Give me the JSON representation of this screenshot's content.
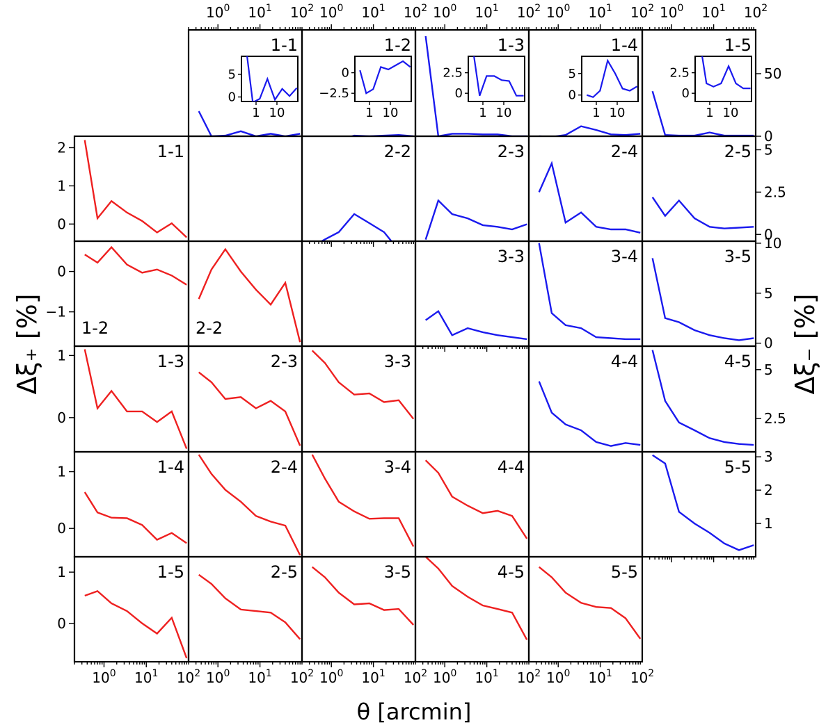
{
  "figure": {
    "x_label": "θ [arcmin]",
    "y_left_label": "Δξ₊ [%]",
    "y_right_label": "Δξ₋ [%]"
  },
  "chart_data": {
    "type": "line",
    "x_scale": "log",
    "xlim": [
      0.2,
      100
    ],
    "x_tick_labels": [
      "10^0",
      "10^1",
      "10^2"
    ],
    "theta": [
      0.35,
      0.7,
      1.5,
      3.5,
      8,
      18,
      40,
      90
    ],
    "colors": {
      "xi_plus": "#ee2020",
      "xi_minus": "#1a1aee"
    },
    "xi_plus": [
      {
        "label": "1-1",
        "row": 1,
        "col": 0,
        "ylim": [
          -0.45,
          2.3
        ],
        "yticks": [
          0,
          1,
          2
        ],
        "label_pos": "top-right",
        "values": [
          2.2,
          0.15,
          0.6,
          0.3,
          0.08,
          -0.22,
          0.02,
          -0.35
        ]
      },
      {
        "label": "1-2",
        "row": 2,
        "col": 0,
        "ylim": [
          -1.85,
          0.75
        ],
        "yticks": [
          -1,
          0
        ],
        "label_pos": "bottom-left",
        "values": [
          0.42,
          0.22,
          0.6,
          0.17,
          -0.03,
          0.05,
          -0.1,
          -0.33
        ]
      },
      {
        "label": "2-2",
        "row": 2,
        "col": 1,
        "ylim": [
          -1.85,
          0.75
        ],
        "yticks": [],
        "label_pos": "bottom-left",
        "values": [
          -0.68,
          0.05,
          0.55,
          0.0,
          -0.45,
          -0.82,
          -0.28,
          -1.75
        ]
      },
      {
        "label": "1-3",
        "row": 3,
        "col": 0,
        "ylim": [
          -0.55,
          1.15
        ],
        "yticks": [
          0,
          1
        ],
        "label_pos": "top-right",
        "values": [
          1.1,
          0.15,
          0.43,
          0.1,
          0.1,
          -0.07,
          0.1,
          -0.5
        ]
      },
      {
        "label": "2-3",
        "row": 3,
        "col": 1,
        "ylim": [
          -0.55,
          1.15
        ],
        "yticks": [],
        "label_pos": "top-right",
        "values": [
          0.73,
          0.57,
          0.3,
          0.33,
          0.15,
          0.27,
          0.1,
          -0.45
        ]
      },
      {
        "label": "3-3",
        "row": 3,
        "col": 2,
        "ylim": [
          -0.55,
          1.15
        ],
        "yticks": [],
        "label_pos": "top-right",
        "values": [
          1.08,
          0.88,
          0.57,
          0.37,
          0.39,
          0.25,
          0.28,
          -0.02
        ]
      },
      {
        "label": "1-4",
        "row": 4,
        "col": 0,
        "ylim": [
          -0.5,
          1.35
        ],
        "yticks": [
          0,
          1
        ],
        "label_pos": "top-right",
        "values": [
          0.64,
          0.28,
          0.19,
          0.18,
          0.06,
          -0.2,
          -0.08,
          -0.26
        ]
      },
      {
        "label": "2-4",
        "row": 4,
        "col": 1,
        "ylim": [
          -0.5,
          1.35
        ],
        "yticks": [],
        "label_pos": "top-right",
        "values": [
          1.3,
          0.96,
          0.68,
          0.47,
          0.22,
          0.12,
          0.05,
          -0.47
        ]
      },
      {
        "label": "3-4",
        "row": 4,
        "col": 2,
        "ylim": [
          -0.5,
          1.35
        ],
        "yticks": [],
        "label_pos": "top-right",
        "values": [
          1.3,
          0.88,
          0.47,
          0.3,
          0.17,
          0.18,
          0.18,
          -0.32
        ]
      },
      {
        "label": "4-4",
        "row": 4,
        "col": 3,
        "ylim": [
          -0.5,
          1.35
        ],
        "yticks": [],
        "label_pos": "top-right",
        "values": [
          1.2,
          0.98,
          0.56,
          0.4,
          0.27,
          0.31,
          0.22,
          -0.18
        ]
      },
      {
        "label": "1-5",
        "row": 5,
        "col": 0,
        "ylim": [
          -0.75,
          1.3
        ],
        "yticks": [
          0,
          1
        ],
        "label_pos": "top-right",
        "values": [
          0.54,
          0.63,
          0.39,
          0.24,
          0.0,
          -0.2,
          0.11,
          -0.68
        ]
      },
      {
        "label": "2-5",
        "row": 5,
        "col": 1,
        "ylim": [
          -0.75,
          1.3
        ],
        "yticks": [],
        "label_pos": "top-right",
        "values": [
          0.95,
          0.77,
          0.49,
          0.27,
          0.24,
          0.21,
          0.02,
          -0.31
        ]
      },
      {
        "label": "3-5",
        "row": 5,
        "col": 2,
        "ylim": [
          -0.75,
          1.3
        ],
        "yticks": [],
        "label_pos": "top-right",
        "values": [
          1.1,
          0.9,
          0.6,
          0.37,
          0.39,
          0.26,
          0.28,
          -0.03
        ]
      },
      {
        "label": "4-5",
        "row": 5,
        "col": 3,
        "ylim": [
          -0.75,
          1.3
        ],
        "yticks": [],
        "label_pos": "top-right",
        "values": [
          1.3,
          1.07,
          0.73,
          0.52,
          0.35,
          0.28,
          0.21,
          -0.32
        ]
      },
      {
        "label": "5-5",
        "row": 5,
        "col": 4,
        "ylim": [
          -0.75,
          1.3
        ],
        "yticks": [],
        "label_pos": "top-right",
        "values": [
          1.1,
          0.9,
          0.6,
          0.4,
          0.32,
          0.3,
          0.1,
          -0.3
        ]
      }
    ],
    "xi_minus": [
      {
        "label": "1-1",
        "row": 0,
        "col": 1,
        "ylim": [
          0,
          85
        ],
        "yticks": [],
        "label_pos": "top-right",
        "values": [
          20,
          0,
          0.5,
          4,
          0,
          2,
          0,
          2
        ],
        "inset": {
          "yticks": [
            0,
            5
          ],
          "ylim": [
            -1,
            9
          ],
          "xticks": [
            "1",
            "10"
          ],
          "values": [
            10,
            -1.2,
            -0.4,
            4,
            -0.6,
            1.8,
            0.2,
            2
          ]
        }
      },
      {
        "label": "1-2",
        "row": 0,
        "col": 2,
        "ylim": [
          0,
          85
        ],
        "yticks": [],
        "label_pos": "top-right",
        "values": [
          -3,
          -3,
          -3,
          0.5,
          0,
          0.5,
          1,
          0
        ],
        "inset": {
          "yticks": [
            -2.5,
            0.0
          ],
          "ylim": [
            -3.5,
            2
          ],
          "xticks": [
            "1",
            "10"
          ],
          "values": [
            0.3,
            -2.5,
            -2.0,
            0.7,
            0.4,
            0.9,
            1.4,
            0.7
          ]
        }
      },
      {
        "label": "1-3",
        "row": 0,
        "col": 3,
        "ylim": [
          0,
          85
        ],
        "yticks": [],
        "label_pos": "top-right",
        "values": [
          80,
          0,
          2,
          2,
          1.5,
          1.5,
          0,
          0
        ],
        "inset": {
          "yticks": [
            0.0,
            2.5
          ],
          "ylim": [
            -1,
            4.5
          ],
          "xticks": [
            "1",
            "10"
          ],
          "values": [
            5,
            -0.3,
            2.1,
            2.1,
            1.6,
            1.5,
            -0.3,
            -0.3
          ]
        }
      },
      {
        "label": "1-4",
        "row": 0,
        "col": 4,
        "ylim": [
          0,
          85
        ],
        "yticks": [],
        "label_pos": "top-right",
        "values": [
          0,
          -0.5,
          1,
          8,
          5,
          1.5,
          1,
          2
        ],
        "inset": {
          "yticks": [
            0,
            5
          ],
          "ylim": [
            -1.5,
            9
          ],
          "xticks": [
            "1",
            "10"
          ],
          "values": [
            0,
            -0.5,
            1,
            8,
            5,
            1.5,
            1,
            2
          ]
        }
      },
      {
        "label": "1-5",
        "row": 0,
        "col": 5,
        "ylim": [
          0,
          85
        ],
        "yticks": [
          0,
          50
        ],
        "label_pos": "top-right",
        "values": [
          36,
          1,
          0.5,
          0.5,
          3,
          0.5,
          0.5,
          0.5
        ],
        "inset": {
          "yticks": [
            0.0,
            2.5
          ],
          "ylim": [
            -1,
            4.5
          ],
          "xticks": [
            "1",
            "10"
          ],
          "values": [
            6,
            1.2,
            0.8,
            1.2,
            3.3,
            1.2,
            0.6,
            0.6
          ]
        }
      },
      {
        "label": "2-2",
        "row": 1,
        "col": 2,
        "ylim": [
          0,
          5.8
        ],
        "yticks": [],
        "label_pos": "top-right",
        "values": [
          -0.3,
          0.1,
          0.5,
          1.5,
          1.0,
          0.5,
          -0.5,
          0.0
        ]
      },
      {
        "label": "2-3",
        "row": 1,
        "col": 3,
        "ylim": [
          -0.4,
          5.8
        ],
        "yticks": [],
        "label_pos": "top-right",
        "values": [
          -0.3,
          2.0,
          1.2,
          0.95,
          0.55,
          0.45,
          0.3,
          0.6
        ]
      },
      {
        "label": "2-4",
        "row": 1,
        "col": 4,
        "ylim": [
          -0.4,
          5.8
        ],
        "yticks": [],
        "label_pos": "top-right",
        "values": [
          2.5,
          4.2,
          0.7,
          1.3,
          0.45,
          0.3,
          0.3,
          0.1
        ]
      },
      {
        "label": "2-5",
        "row": 1,
        "col": 5,
        "ylim": [
          -0.4,
          5.8
        ],
        "yticks": [
          0.0,
          2.5,
          5.0
        ],
        "label_pos": "top-right",
        "values": [
          2.2,
          1.1,
          2.0,
          0.95,
          0.45,
          0.35,
          0.4,
          0.45
        ]
      },
      {
        "label": "3-3",
        "row": 2,
        "col": 3,
        "ylim": [
          -0.3,
          10.2
        ],
        "yticks": [],
        "label_pos": "top-right",
        "values": [
          2.3,
          3.2,
          0.8,
          1.5,
          1.1,
          0.8,
          0.6,
          0.4
        ]
      },
      {
        "label": "3-4",
        "row": 2,
        "col": 4,
        "ylim": [
          -0.3,
          10.2
        ],
        "yticks": [],
        "label_pos": "top-right",
        "values": [
          10.0,
          3.0,
          1.8,
          1.5,
          0.6,
          0.5,
          0.4,
          0.4
        ]
      },
      {
        "label": "3-5",
        "row": 2,
        "col": 5,
        "ylim": [
          -0.3,
          10.2
        ],
        "yticks": [
          0,
          5,
          10
        ],
        "label_pos": "top-right",
        "values": [
          8.5,
          2.5,
          2.1,
          1.3,
          0.8,
          0.5,
          0.3,
          0.5
        ]
      },
      {
        "label": "4-4",
        "row": 3,
        "col": 4,
        "ylim": [
          0.8,
          6.2
        ],
        "yticks": [],
        "label_pos": "top-right",
        "values": [
          4.4,
          2.8,
          2.2,
          1.9,
          1.3,
          1.1,
          1.25,
          1.15
        ]
      },
      {
        "label": "4-5",
        "row": 3,
        "col": 5,
        "ylim": [
          0.8,
          6.2
        ],
        "yticks": [
          2.5,
          5.0
        ],
        "label_pos": "top-right",
        "values": [
          6.0,
          3.4,
          2.3,
          1.9,
          1.5,
          1.3,
          1.2,
          1.15
        ]
      },
      {
        "label": "5-5",
        "row": 4,
        "col": 5,
        "ylim": [
          0.0,
          3.15
        ],
        "yticks": [
          1,
          2,
          3
        ],
        "label_pos": "top-right",
        "values": [
          3.05,
          2.8,
          1.35,
          1.0,
          0.72,
          0.4,
          0.2,
          0.35
        ]
      }
    ]
  }
}
